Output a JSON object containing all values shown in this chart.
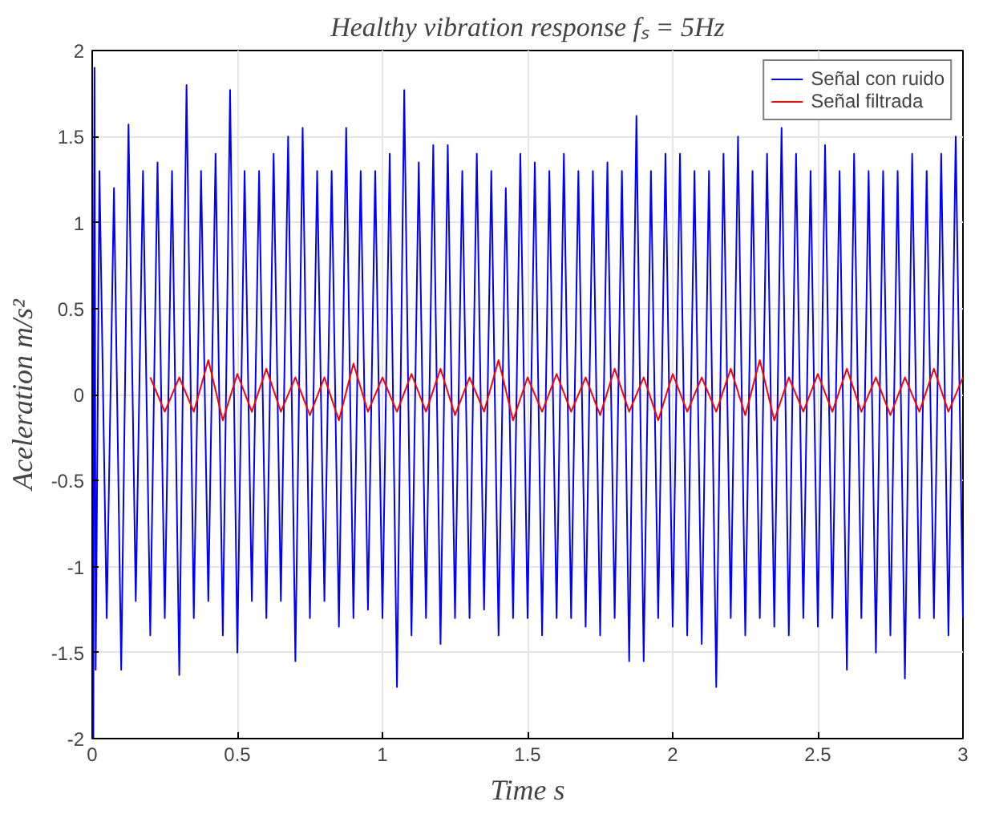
{
  "chart_data": {
    "type": "line",
    "title": "Healthy vibration response fₛ = 5Hz",
    "xlabel": "Time s",
    "ylabel": "Aceleration m/s²",
    "xlim": [
      0,
      3
    ],
    "ylim": [
      -2,
      2
    ],
    "xticks": [
      0,
      0.5,
      1,
      1.5,
      2,
      2.5,
      3
    ],
    "yticks": [
      -2,
      -1.5,
      -1,
      -0.5,
      0,
      0.5,
      1,
      1.5,
      2
    ],
    "grid": true,
    "legend": "top right",
    "line_style": "solid",
    "marker": "none",
    "series": [
      {
        "name": "Señal con ruido",
        "color": "#0000ff",
        "x": [
          0,
          0.004,
          0.008,
          0.012,
          0.025,
          0.05,
          0.075,
          0.1,
          0.125,
          0.15,
          0.175,
          0.2,
          0.225,
          0.25,
          0.275,
          0.3,
          0.325,
          0.35,
          0.375,
          0.4,
          0.425,
          0.45,
          0.475,
          0.5,
          0.525,
          0.55,
          0.575,
          0.6,
          0.625,
          0.65,
          0.675,
          0.7,
          0.725,
          0.75,
          0.775,
          0.8,
          0.825,
          0.85,
          0.875,
          0.9,
          0.925,
          0.95,
          0.975,
          1.0,
          1.025,
          1.05,
          1.075,
          1.1,
          1.125,
          1.15,
          1.175,
          1.2,
          1.225,
          1.25,
          1.275,
          1.3,
          1.325,
          1.35,
          1.375,
          1.4,
          1.425,
          1.45,
          1.475,
          1.5,
          1.525,
          1.55,
          1.575,
          1.6,
          1.625,
          1.65,
          1.675,
          1.7,
          1.725,
          1.75,
          1.775,
          1.8,
          1.825,
          1.85,
          1.875,
          1.9,
          1.925,
          1.95,
          1.975,
          2.0,
          2.025,
          2.05,
          2.075,
          2.1,
          2.125,
          2.15,
          2.175,
          2.2,
          2.225,
          2.25,
          2.275,
          2.3,
          2.325,
          2.35,
          2.375,
          2.4,
          2.425,
          2.45,
          2.475,
          2.5,
          2.525,
          2.55,
          2.575,
          2.6,
          2.625,
          2.65,
          2.675,
          2.7,
          2.725,
          2.75,
          2.775,
          2.8,
          2.825,
          2.85,
          2.875,
          2.9,
          2.925,
          2.95,
          2.975,
          3.0
        ],
        "values": [
          2,
          -2,
          1.9,
          -1.6,
          1.3,
          -1.3,
          1.2,
          -1.6,
          1.57,
          -1.2,
          1.3,
          -1.4,
          1.35,
          -1.3,
          1.3,
          -1.63,
          1.8,
          -1.3,
          1.3,
          -1.2,
          1.4,
          -1.4,
          1.77,
          -1.5,
          1.3,
          -1.2,
          1.3,
          -1.3,
          1.4,
          -1.2,
          1.5,
          -1.55,
          1.55,
          -1.3,
          1.3,
          -1.2,
          1.3,
          -1.35,
          1.55,
          -1.3,
          1.3,
          -1.25,
          1.3,
          -1.3,
          1.4,
          -1.7,
          1.77,
          -1.4,
          1.35,
          -1.3,
          1.45,
          -1.45,
          1.45,
          -1.3,
          1.3,
          -1.3,
          1.4,
          -1.25,
          1.3,
          -1.4,
          1.2,
          -1.3,
          1.4,
          -1.3,
          1.35,
          -1.4,
          1.3,
          -1.3,
          1.4,
          -1.3,
          1.3,
          -1.35,
          1.3,
          -1.4,
          1.35,
          -1.3,
          1.3,
          -1.55,
          1.62,
          -1.55,
          1.3,
          -1.3,
          1.4,
          -1.35,
          1.4,
          -1.4,
          1.3,
          -1.45,
          1.3,
          -1.7,
          1.4,
          -1.3,
          1.5,
          -1.4,
          1.3,
          -1.3,
          1.4,
          -1.35,
          1.55,
          -1.4,
          1.4,
          -1.3,
          1.3,
          -1.35,
          1.45,
          -1.3,
          1.3,
          -1.6,
          1.4,
          -1.3,
          1.3,
          -1.5,
          1.3,
          -1.4,
          1.3,
          -1.65,
          1.4,
          -1.3,
          1.3,
          -1.3,
          1.4,
          -1.4,
          1.5,
          -1.3
        ]
      },
      {
        "name": "Señal filtrada",
        "color": "#ff0000",
        "x": [
          0.2,
          0.25,
          0.3,
          0.35,
          0.4,
          0.45,
          0.5,
          0.55,
          0.6,
          0.65,
          0.7,
          0.75,
          0.8,
          0.85,
          0.9,
          0.95,
          1.0,
          1.05,
          1.1,
          1.15,
          1.2,
          1.25,
          1.3,
          1.35,
          1.4,
          1.45,
          1.5,
          1.55,
          1.6,
          1.65,
          1.7,
          1.75,
          1.8,
          1.85,
          1.9,
          1.95,
          2.0,
          2.05,
          2.1,
          2.15,
          2.2,
          2.25,
          2.3,
          2.35,
          2.4,
          2.45,
          2.5,
          2.55,
          2.6,
          2.65,
          2.7,
          2.75,
          2.8,
          2.85,
          2.9,
          2.95,
          3.0
        ],
        "values": [
          0.1,
          -0.1,
          0.1,
          -0.1,
          0.2,
          -0.15,
          0.12,
          -0.1,
          0.15,
          -0.1,
          0.1,
          -0.12,
          0.1,
          -0.15,
          0.18,
          -0.1,
          0.1,
          -0.1,
          0.12,
          -0.1,
          0.15,
          -0.12,
          0.1,
          -0.1,
          0.2,
          -0.15,
          0.1,
          -0.1,
          0.12,
          -0.1,
          0.1,
          -0.12,
          0.15,
          -0.1,
          0.1,
          -0.15,
          0.12,
          -0.1,
          0.1,
          -0.1,
          0.15,
          -0.12,
          0.2,
          -0.15,
          0.1,
          -0.1,
          0.12,
          -0.1,
          0.15,
          -0.1,
          0.1,
          -0.12,
          0.1,
          -0.1,
          0.15,
          -0.1,
          0.1
        ]
      }
    ]
  }
}
